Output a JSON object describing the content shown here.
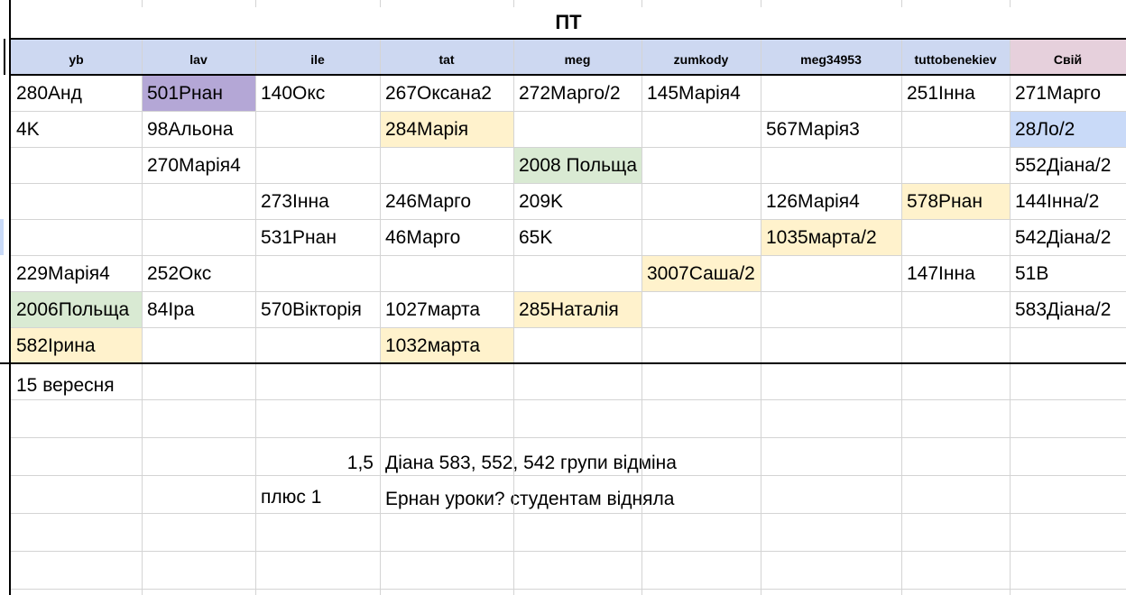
{
  "sheet": {
    "title": "ПТ",
    "columns": [
      {
        "label": "yb"
      },
      {
        "label": "lav"
      },
      {
        "label": "ile"
      },
      {
        "label": "tat"
      },
      {
        "label": "meg"
      },
      {
        "label": "zumkody"
      },
      {
        "label": "meg34953"
      },
      {
        "label": "tuttobenekiev"
      },
      {
        "label": "Свій",
        "fill": "#e6d0dc"
      }
    ],
    "colors": {
      "header_fill": "#cdd8f1",
      "purple": "#b4a7d6",
      "yellow": "#fff2cc",
      "green": "#d9ead3",
      "blue": "#c9daf8"
    },
    "rows": [
      [
        {
          "t": "280Анд"
        },
        {
          "t": "501Рнан",
          "fill": "#b4a7d6"
        },
        {
          "t": "140Окс"
        },
        {
          "t": "267Оксана2"
        },
        {
          "t": "272Марго/2"
        },
        {
          "t": "145Марія4"
        },
        {
          "t": ""
        },
        {
          "t": "251Інна"
        },
        {
          "t": "271Марго"
        }
      ],
      [
        {
          "t": "4K"
        },
        {
          "t": "98Альона"
        },
        {
          "t": ""
        },
        {
          "t": "284Марія",
          "fill": "#fff2cc"
        },
        {
          "t": ""
        },
        {
          "t": ""
        },
        {
          "t": "567Марія3"
        },
        {
          "t": ""
        },
        {
          "t": "28Ло/2",
          "fill": "#c9daf8"
        }
      ],
      [
        {
          "t": ""
        },
        {
          "t": "270Марія4"
        },
        {
          "t": ""
        },
        {
          "t": ""
        },
        {
          "t": "2008 Польща",
          "fill": "#d9ead3"
        },
        {
          "t": ""
        },
        {
          "t": ""
        },
        {
          "t": ""
        },
        {
          "t": "552Діана/2"
        }
      ],
      [
        {
          "t": ""
        },
        {
          "t": ""
        },
        {
          "t": "273Інна"
        },
        {
          "t": "246Марго"
        },
        {
          "t": "209K"
        },
        {
          "t": ""
        },
        {
          "t": "126Марія4"
        },
        {
          "t": "578Рнан",
          "fill": "#fff2cc"
        },
        {
          "t": "144Інна/2"
        }
      ],
      [
        {
          "t": ""
        },
        {
          "t": ""
        },
        {
          "t": "531Рнан"
        },
        {
          "t": "46Марго"
        },
        {
          "t": "65K"
        },
        {
          "t": ""
        },
        {
          "t": "1035марта/2",
          "fill": "#fff2cc"
        },
        {
          "t": ""
        },
        {
          "t": "542Діана/2"
        }
      ],
      [
        {
          "t": "229Марія4"
        },
        {
          "t": "252Окс"
        },
        {
          "t": ""
        },
        {
          "t": ""
        },
        {
          "t": ""
        },
        {
          "t": "3007Саша/2",
          "fill": "#fff2cc"
        },
        {
          "t": ""
        },
        {
          "t": "147Інна"
        },
        {
          "t": "51B"
        }
      ],
      [
        {
          "t": "2006Польща",
          "fill": "#d9ead3"
        },
        {
          "t": "84Іра"
        },
        {
          "t": "570Вікторія"
        },
        {
          "t": "1027марта"
        },
        {
          "t": "285Наталія",
          "fill": "#fff2cc"
        },
        {
          "t": ""
        },
        {
          "t": ""
        },
        {
          "t": ""
        },
        {
          "t": "583Діана/2"
        }
      ],
      [
        {
          "t": "582Ірина",
          "fill": "#fff2cc"
        },
        {
          "t": ""
        },
        {
          "t": ""
        },
        {
          "t": "1032марта",
          "fill": "#fff2cc"
        },
        {
          "t": ""
        },
        {
          "t": ""
        },
        {
          "t": ""
        },
        {
          "t": ""
        },
        {
          "t": ""
        }
      ]
    ],
    "notes": {
      "date": "15 вересня",
      "hours": "1,5",
      "note1": "Діана 583, 552, 542 групи відміна",
      "plus": "плюс 1",
      "note2": "Ернан уроки?  студентам відняла"
    }
  }
}
